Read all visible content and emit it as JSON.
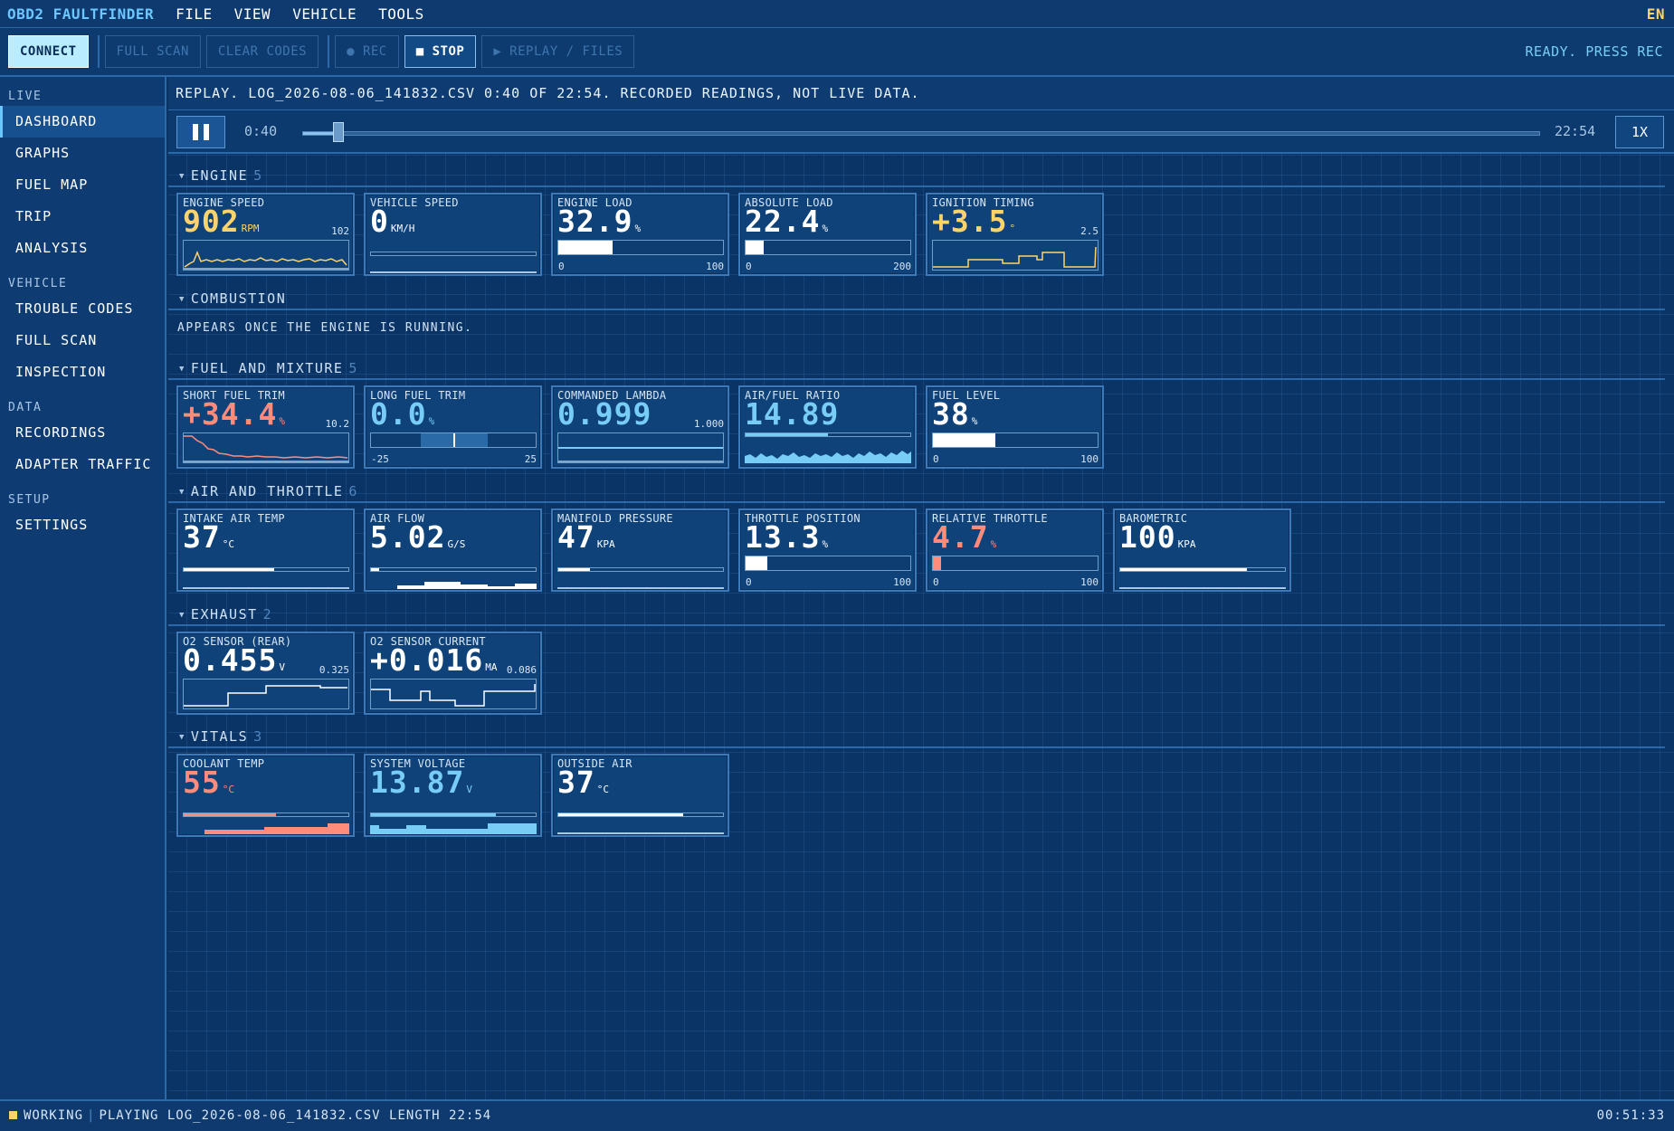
{
  "app": {
    "brand": "OBD2 FAULTFINDER",
    "menu": [
      "FILE",
      "VIEW",
      "VEHICLE",
      "TOOLS"
    ],
    "lang": "EN"
  },
  "toolbar": {
    "connect": "CONNECT",
    "full_scan": "FULL SCAN",
    "clear_codes": "CLEAR CODES",
    "rec": "● REC",
    "stop": "■ STOP",
    "replay": "▶ REPLAY / FILES",
    "status": "READY. PRESS REC"
  },
  "sidebar": {
    "groups": [
      {
        "title": "LIVE",
        "items": [
          "DASHBOARD",
          "GRAPHS",
          "FUEL MAP",
          "TRIP",
          "ANALYSIS"
        ]
      },
      {
        "title": "VEHICLE",
        "items": [
          "TROUBLE CODES",
          "FULL SCAN",
          "INSPECTION"
        ]
      },
      {
        "title": "DATA",
        "items": [
          "RECORDINGS",
          "ADAPTER TRAFFIC"
        ]
      },
      {
        "title": "SETUP",
        "items": [
          "SETTINGS"
        ]
      }
    ],
    "active": "DASHBOARD"
  },
  "replay": {
    "banner": "REPLAY. LOG_2026-08-06_141832.CSV 0:40 OF 22:54. RECORDED READINGS, NOT LIVE DATA.",
    "current": "0:40",
    "total": "22:54",
    "progress": 0.029,
    "speed": "1X"
  },
  "sections": {
    "engine": {
      "title": "ENGINE",
      "count": "5"
    },
    "combustion": {
      "title": "COMBUSTION",
      "note": "APPEARS ONCE THE ENGINE IS RUNNING."
    },
    "fuel": {
      "title": "FUEL AND MIXTURE",
      "count": "5"
    },
    "air": {
      "title": "AIR AND THROTTLE",
      "count": "6"
    },
    "exhaust": {
      "title": "EXHAUST",
      "count": "2"
    },
    "vitals": {
      "title": "VITALS",
      "count": "3"
    }
  },
  "cards": {
    "engine_speed": {
      "label": "ENGINE SPEED",
      "value": "902",
      "unit": "RPM",
      "ref": "102",
      "color": "#ffd36b"
    },
    "vehicle_speed": {
      "label": "VEHICLE SPEED",
      "value": "0",
      "unit": "KM/H",
      "level": 0.0
    },
    "engine_load": {
      "label": "ENGINE LOAD",
      "value": "32.9",
      "unit": "%",
      "min": "0",
      "max": "100",
      "level": 0.329
    },
    "absolute_load": {
      "label": "ABSOLUTE LOAD",
      "value": "22.4",
      "unit": "%",
      "min": "0",
      "max": "200",
      "level": 0.112
    },
    "ignition_timing": {
      "label": "IGNITION TIMING",
      "value": "+3.5",
      "unit": "°",
      "ref": "2.5",
      "color": "#ffd36b"
    },
    "short_fuel_trim": {
      "label": "SHORT FUEL TRIM",
      "value": "+34.4",
      "unit": "%",
      "ref": "10.2",
      "color": "#ff8c7a"
    },
    "long_fuel_trim": {
      "label": "LONG FUEL TRIM",
      "value": "0.0",
      "unit": "%",
      "min": "-25",
      "max": "25",
      "color": "#77cdf6"
    },
    "commanded_lambda": {
      "label": "COMMANDED LAMBDA",
      "value": "0.999",
      "ref": "1.000",
      "color": "#77cdf6"
    },
    "air_fuel_ratio": {
      "label": "AIR/FUEL RATIO",
      "value": "14.89",
      "color": "#77cdf6"
    },
    "fuel_level": {
      "label": "FUEL LEVEL",
      "value": "38",
      "unit": "%",
      "min": "0",
      "max": "100",
      "level": 0.38
    },
    "intake_air_temp": {
      "label": "INTAKE AIR TEMP",
      "value": "37",
      "unit": "°C",
      "level": 0.55
    },
    "air_flow": {
      "label": "AIR FLOW",
      "value": "5.02",
      "unit": "G/S",
      "level": 0.05
    },
    "manifold_pressure": {
      "label": "MANIFOLD PRESSURE",
      "value": "47",
      "unit": "KPA",
      "level": 0.19
    },
    "throttle_position": {
      "label": "THROTTLE POSITION",
      "value": "13.3",
      "unit": "%",
      "min": "0",
      "max": "100",
      "level": 0.133
    },
    "relative_throttle": {
      "label": "RELATIVE THROTTLE",
      "value": "4.7",
      "unit": "%",
      "min": "0",
      "max": "100",
      "level": 0.047,
      "color": "#ff8c7a"
    },
    "barometric": {
      "label": "BAROMETRIC",
      "value": "100",
      "unit": "KPA",
      "level": 0.77
    },
    "o2_rear": {
      "label": "O2 SENSOR (REAR)",
      "value": "0.455",
      "unit": "V",
      "ref": "0.325"
    },
    "o2_current": {
      "label": "O2 SENSOR CURRENT",
      "value": "+0.016",
      "unit": "MA",
      "ref": "0.086"
    },
    "coolant_temp": {
      "label": "COOLANT TEMP",
      "value": "55",
      "unit": "°C",
      "color": "#ff8c7a",
      "level": 0.56
    },
    "system_voltage": {
      "label": "SYSTEM VOLTAGE",
      "value": "13.87",
      "unit": "V",
      "color": "#77cdf6",
      "level": 0.76
    },
    "outside_air": {
      "label": "OUTSIDE AIR",
      "value": "37",
      "unit": "°C",
      "level": 0.76
    }
  },
  "statusbar": {
    "state": "WORKING",
    "message": "PLAYING LOG_2026-08-06_141832.CSV LENGTH 22:54",
    "clock": "00:51:33"
  }
}
